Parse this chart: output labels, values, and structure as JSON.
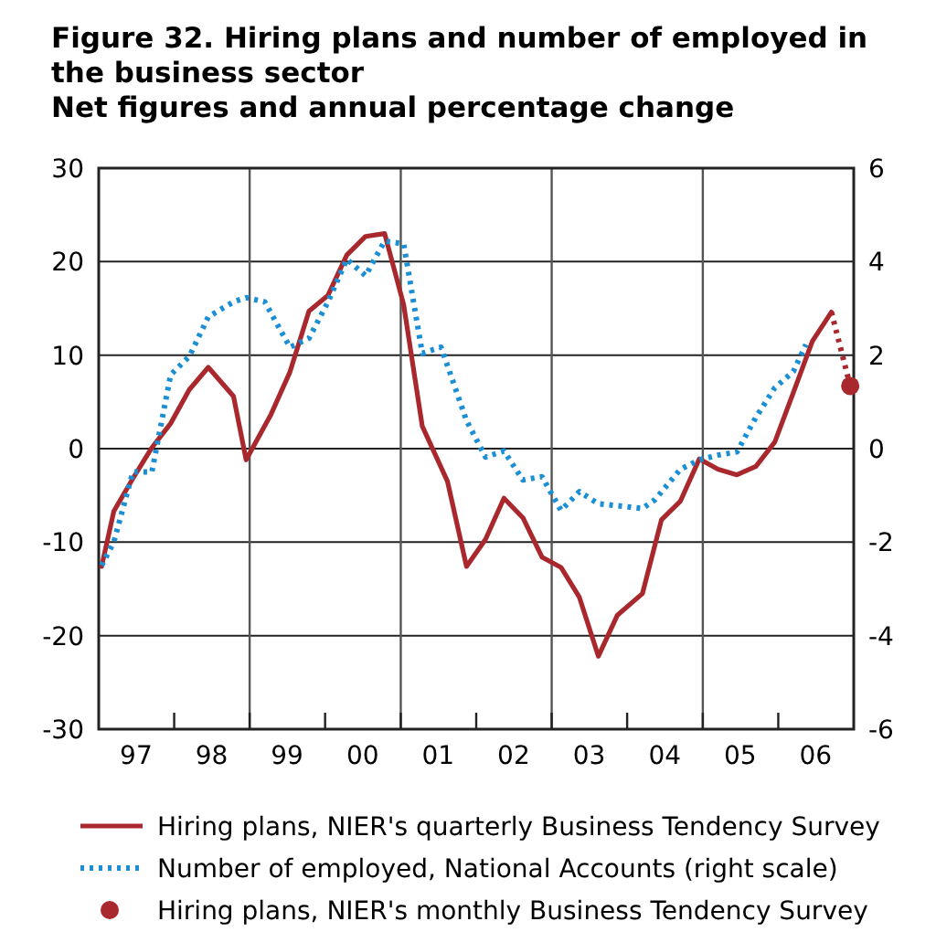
{
  "chart_data": {
    "type": "line",
    "title": "Figure 32. Hiring plans and number of employed in the business sector",
    "subtitle": "Net figures and annual percentage change",
    "xlim": [
      "1997-01-01",
      "2007-01-01"
    ],
    "xticks": [
      {
        "value": "1997-07-01",
        "label": "97"
      },
      {
        "value": "1998-01-01",
        "label": null
      },
      {
        "value": "1998-07-01",
        "label": "98"
      },
      {
        "value": "1999-01-01",
        "label": null
      },
      {
        "value": "1999-07-01",
        "label": "99"
      },
      {
        "value": "2000-01-01",
        "label": null
      },
      {
        "value": "2000-07-01",
        "label": "00"
      },
      {
        "value": "2001-01-01",
        "label": null
      },
      {
        "value": "2001-07-01",
        "label": "01"
      },
      {
        "value": "2002-01-01",
        "label": null
      },
      {
        "value": "2002-07-01",
        "label": "02"
      },
      {
        "value": "2003-01-01",
        "label": null
      },
      {
        "value": "2003-07-01",
        "label": "03"
      },
      {
        "value": "2004-01-01",
        "label": null
      },
      {
        "value": "2004-07-01",
        "label": "04"
      },
      {
        "value": "2005-01-01",
        "label": null
      },
      {
        "value": "2005-07-01",
        "label": "05"
      },
      {
        "value": "2006-01-01",
        "label": null
      },
      {
        "value": "2006-07-01",
        "label": "06"
      }
    ],
    "ylim": [
      -30,
      30
    ],
    "yticks": [
      -30,
      -20,
      -10,
      0,
      10,
      20,
      30
    ],
    "y2lim": [
      -6,
      6
    ],
    "y2ticks": [
      -6,
      -4,
      -2,
      0,
      2,
      4,
      6
    ],
    "grid": "y",
    "legend": "bottom",
    "ref_lines": [
      {
        "axis": "x",
        "value": "1999-01-01",
        "color": "#555555"
      },
      {
        "axis": "x",
        "value": "2001-01-01",
        "color": "#555555"
      },
      {
        "axis": "x",
        "value": "2003-01-01",
        "color": "#555555"
      },
      {
        "axis": "x",
        "value": "2005-01-01",
        "color": "#555555"
      }
    ],
    "series": [
      {
        "name": "Hiring plans, NIER's quarterly Business Tendency Survey",
        "type": "line",
        "color": "#a8282d",
        "line_style": "solid",
        "x": [
          "1997-01",
          "1997-03",
          "1997-06",
          "1997-09",
          "1997-12",
          "1998-03",
          "1998-06",
          "1998-10",
          "1998-12",
          "1999-04",
          "1999-07",
          "1999-10",
          "2000-01",
          "2000-04",
          "2000-07",
          "2000-10",
          "2001-01",
          "2001-04",
          "2001-08",
          "2001-11",
          "2002-02",
          "2002-05",
          "2002-08",
          "2002-11",
          "2003-02",
          "2003-05",
          "2003-08",
          "2003-11",
          "2004-03",
          "2004-06",
          "2004-09",
          "2004-12",
          "2005-03",
          "2005-06",
          "2005-09",
          "2005-12",
          "2006-03",
          "2006-06",
          "2006-09"
        ],
        "values": [
          -12.6,
          -6.7,
          -3.2,
          0.1,
          2.7,
          6.3,
          8.7,
          5.6,
          -1.2,
          3.7,
          8.2,
          14.7,
          16.4,
          20.7,
          22.7,
          23.0,
          15.4,
          2.4,
          -3.5,
          -12.6,
          -9.7,
          -5.3,
          -7.4,
          -11.6,
          -12.7,
          -15.9,
          -22.2,
          -17.8,
          -15.5,
          -7.6,
          -5.6,
          -1.1,
          -2.2,
          -2.8,
          -1.9,
          0.7,
          6.0,
          11.5,
          14.6
        ]
      },
      {
        "name": "Number of employed, National Accounts (right scale)",
        "type": "line",
        "axis": "y2",
        "color": "#1a8fd6",
        "line_style": "dotted",
        "x": [
          "1997-01",
          "1997-03",
          "1997-06",
          "1997-09",
          "1997-12",
          "1998-03",
          "1998-06",
          "1998-10",
          "1998-12",
          "1999-03",
          "1999-07",
          "1999-10",
          "2000-01",
          "2000-04",
          "2000-07",
          "2000-10",
          "2001-01",
          "2001-04",
          "2001-07",
          "2001-11",
          "2002-02",
          "2002-05",
          "2002-08",
          "2002-11",
          "2003-02",
          "2003-05",
          "2003-08",
          "2003-11",
          "2004-03",
          "2004-05",
          "2004-09",
          "2004-12",
          "2005-03",
          "2005-06",
          "2005-09",
          "2005-12",
          "2006-03",
          "2006-05"
        ],
        "values": [
          -2.5,
          -2.0,
          -0.5,
          -0.5,
          1.58,
          1.97,
          2.82,
          3.14,
          3.23,
          3.14,
          2.17,
          2.36,
          3.14,
          4.05,
          3.7,
          4.44,
          4.38,
          2.04,
          2.17,
          0.6,
          -0.18,
          -0.05,
          -0.67,
          -0.6,
          -1.32,
          -0.92,
          -1.18,
          -1.22,
          -1.28,
          -1.09,
          -0.44,
          -0.24,
          -0.14,
          -0.07,
          0.67,
          1.3,
          1.65,
          2.23
        ]
      },
      {
        "type": "line",
        "color": "#a8282d",
        "line_style": "dotted",
        "x": [
          "2006-09",
          "2006-12"
        ],
        "values": [
          14.6,
          6.7
        ]
      },
      {
        "name": "Hiring plans, NIER's monthly Business Tendency Survey",
        "type": "scatter",
        "marker": "circle",
        "color": "#a8282d",
        "x": [
          "2006-12"
        ],
        "values": [
          6.7
        ]
      }
    ]
  }
}
